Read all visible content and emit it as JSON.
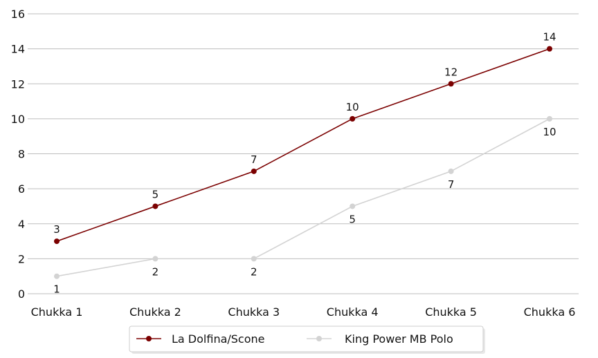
{
  "chart_data": {
    "type": "line",
    "title": "",
    "xlabel": "",
    "ylabel": "",
    "categories": [
      "Chukka 1",
      "Chukka 2",
      "Chukka 3",
      "Chukka 4",
      "Chukka 5",
      "Chukka 6"
    ],
    "ylim": [
      0,
      16
    ],
    "yticks": [
      0,
      2,
      4,
      6,
      8,
      10,
      12,
      14,
      16
    ],
    "grid": "horizontal",
    "legend_position": "bottom-center",
    "series": [
      {
        "name": "La Dolfina/Scone",
        "color": "#7b0000",
        "values": [
          3,
          5,
          7,
          10,
          12,
          14
        ],
        "label_position": "above"
      },
      {
        "name": "King Power MB Polo",
        "color": "#d3d3d3",
        "values": [
          1,
          2,
          2,
          5,
          7,
          10
        ],
        "label_position": "below"
      }
    ]
  }
}
